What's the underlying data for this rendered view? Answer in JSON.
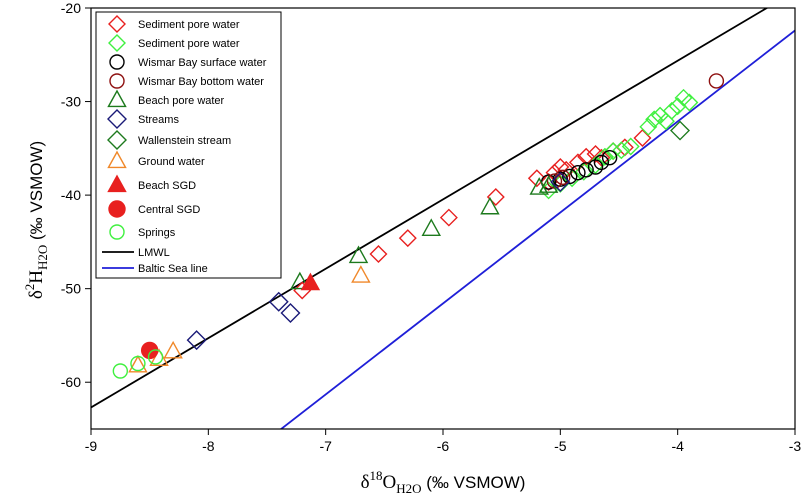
{
  "chart_data": {
    "type": "scatter",
    "xlim": [
      -9,
      -3
    ],
    "ylim": [
      -65,
      -20
    ],
    "x_ticks": [
      -9,
      -8,
      -7,
      -6,
      -5,
      -4,
      -3
    ],
    "y_ticks": [
      -60,
      -50,
      -40,
      -30,
      -20
    ],
    "x_tick_labels": [
      "-9",
      "-8",
      "-7",
      "-6",
      "-5",
      "-4",
      "-3"
    ],
    "y_tick_labels": [
      "-60",
      "-50",
      "-40",
      "-30",
      "-20"
    ],
    "xlabel": {
      "prefix": "δ",
      "sup": "18",
      "main": "O",
      "sub": "H2O",
      "suffix": " (‰ VSMOW)"
    },
    "ylabel": {
      "prefix": "δ",
      "sup": "2",
      "main": "H",
      "sub": "H2O",
      "suffix": " (‰ VSMOW)"
    },
    "legend_position": "top-left",
    "lines": [
      {
        "name": "LMWL",
        "color": "#000000",
        "x": [
          -9,
          -3.2
        ],
        "y": [
          -62.7,
          -19.7
        ]
      },
      {
        "name": "Baltic Sea line",
        "color": "#1f1fd8",
        "x": [
          -7.4,
          -3
        ],
        "y": [
          -65.2,
          -22.4
        ]
      }
    ],
    "series": [
      {
        "name": "Sediment pore water",
        "marker": "diamond",
        "color": "#e8201f",
        "fill": "none",
        "size": 8,
        "points": [
          [
            -7.2,
            -50.2
          ],
          [
            -6.55,
            -46.3
          ],
          [
            -6.3,
            -44.6
          ],
          [
            -5.95,
            -42.4
          ],
          [
            -5.55,
            -40.2
          ],
          [
            -5.2,
            -38.2
          ],
          [
            -5.05,
            -37.6
          ],
          [
            -5.0,
            -37.0
          ],
          [
            -4.95,
            -37.3
          ],
          [
            -4.85,
            -36.5
          ],
          [
            -4.78,
            -35.9
          ],
          [
            -4.7,
            -35.6
          ],
          [
            -4.65,
            -36.0
          ],
          [
            -4.55,
            -35.3
          ],
          [
            -4.45,
            -34.9
          ],
          [
            -4.3,
            -33.9
          ],
          [
            -5.1,
            -38.6
          ]
        ]
      },
      {
        "name": "Sediment pore water",
        "marker": "diamond",
        "color": "#3ff03f",
        "fill": "none",
        "size": 8,
        "points": [
          [
            -5.1,
            -39.5
          ],
          [
            -5.0,
            -38.8
          ],
          [
            -4.9,
            -38.2
          ],
          [
            -4.8,
            -37.5
          ],
          [
            -4.7,
            -36.8
          ],
          [
            -4.62,
            -35.9
          ],
          [
            -4.55,
            -35.3
          ],
          [
            -4.48,
            -35.2
          ],
          [
            -4.4,
            -34.8
          ],
          [
            -4.25,
            -32.7
          ],
          [
            -4.2,
            -31.9
          ],
          [
            -4.15,
            -31.5
          ],
          [
            -4.1,
            -32.1
          ],
          [
            -4.05,
            -31.0
          ],
          [
            -4.0,
            -30.5
          ],
          [
            -3.95,
            -29.6
          ],
          [
            -3.9,
            -30.1
          ]
        ]
      },
      {
        "name": "Wismar Bay surface water",
        "marker": "circle",
        "color": "#000000",
        "fill": "none",
        "size": 7,
        "points": [
          [
            -5.1,
            -38.6
          ],
          [
            -5.0,
            -38.3
          ],
          [
            -4.92,
            -38.0
          ],
          [
            -4.85,
            -37.6
          ],
          [
            -4.78,
            -37.3
          ],
          [
            -4.7,
            -37.0
          ],
          [
            -4.65,
            -36.5
          ],
          [
            -4.58,
            -36.0
          ]
        ]
      },
      {
        "name": "Wismar Bay bottom water",
        "marker": "circle",
        "color": "#8e1010",
        "fill": "none",
        "size": 7,
        "points": [
          [
            -3.67,
            -27.8
          ],
          [
            -5.05,
            -38.5
          ],
          [
            -4.98,
            -38.1
          ]
        ]
      },
      {
        "name": "Beach pore water",
        "marker": "triangle",
        "color": "#1d7a1d",
        "fill": "none",
        "size": 9,
        "points": [
          [
            -7.22,
            -49.3
          ],
          [
            -6.72,
            -46.5
          ],
          [
            -6.1,
            -43.6
          ],
          [
            -5.6,
            -41.3
          ],
          [
            -5.18,
            -39.2
          ],
          [
            -5.1,
            -39.0
          ]
        ]
      },
      {
        "name": "Streams",
        "marker": "diamond",
        "color": "#1a1a78",
        "fill": "none",
        "size": 9,
        "points": [
          [
            -8.1,
            -55.5
          ],
          [
            -7.4,
            -51.4
          ],
          [
            -7.3,
            -52.6
          ],
          [
            -5.0,
            -38.6
          ]
        ]
      },
      {
        "name": "Wallenstein stream",
        "marker": "diamond",
        "color": "#1d7a1d",
        "fill": "none",
        "size": 9,
        "points": [
          [
            -3.98,
            -33.1
          ]
        ]
      },
      {
        "name": "Ground water",
        "marker": "triangle",
        "color": "#f0882a",
        "fill": "none",
        "size": 9,
        "points": [
          [
            -8.6,
            -58.2
          ],
          [
            -8.42,
            -57.5
          ],
          [
            -8.3,
            -56.7
          ],
          [
            -6.7,
            -48.6
          ]
        ]
      },
      {
        "name": "Beach SGD",
        "marker": "triangle",
        "color": "#e8201f",
        "fill": "#e8201f",
        "size": 9,
        "points": [
          [
            -7.13,
            -49.4
          ]
        ]
      },
      {
        "name": "Central SGD",
        "marker": "circle",
        "color": "#e8201f",
        "fill": "#e8201f",
        "size": 8,
        "points": [
          [
            -8.5,
            -56.6
          ]
        ]
      },
      {
        "name": "Springs",
        "marker": "circle",
        "color": "#3ff03f",
        "fill": "none",
        "size": 7,
        "points": [
          [
            -8.75,
            -58.8
          ],
          [
            -8.6,
            -58.0
          ],
          [
            -8.45,
            -57.3
          ]
        ]
      }
    ],
    "legend": [
      {
        "label": "Sediment pore water",
        "kind": "marker",
        "series": 0
      },
      {
        "label": "Sediment pore water",
        "kind": "marker",
        "series": 1
      },
      {
        "label": "Wismar Bay surface water",
        "kind": "marker",
        "series": 2
      },
      {
        "label": "Wismar Bay bottom water",
        "kind": "marker",
        "series": 3
      },
      {
        "label": "Beach pore water",
        "kind": "marker",
        "series": 4
      },
      {
        "label": "Streams",
        "kind": "marker",
        "series": 5
      },
      {
        "label": "Wallenstein stream",
        "kind": "marker",
        "series": 6
      },
      {
        "label": "Ground water",
        "kind": "marker",
        "series": 7
      },
      {
        "label": "Beach SGD",
        "kind": "marker",
        "series": 8
      },
      {
        "label": "Central SGD",
        "kind": "marker",
        "series": 9
      },
      {
        "label": "Springs",
        "kind": "marker",
        "series": 10
      },
      {
        "label": "LMWL",
        "kind": "line",
        "line": 0
      },
      {
        "label": "Baltic Sea line",
        "kind": "line",
        "line": 1
      }
    ]
  }
}
